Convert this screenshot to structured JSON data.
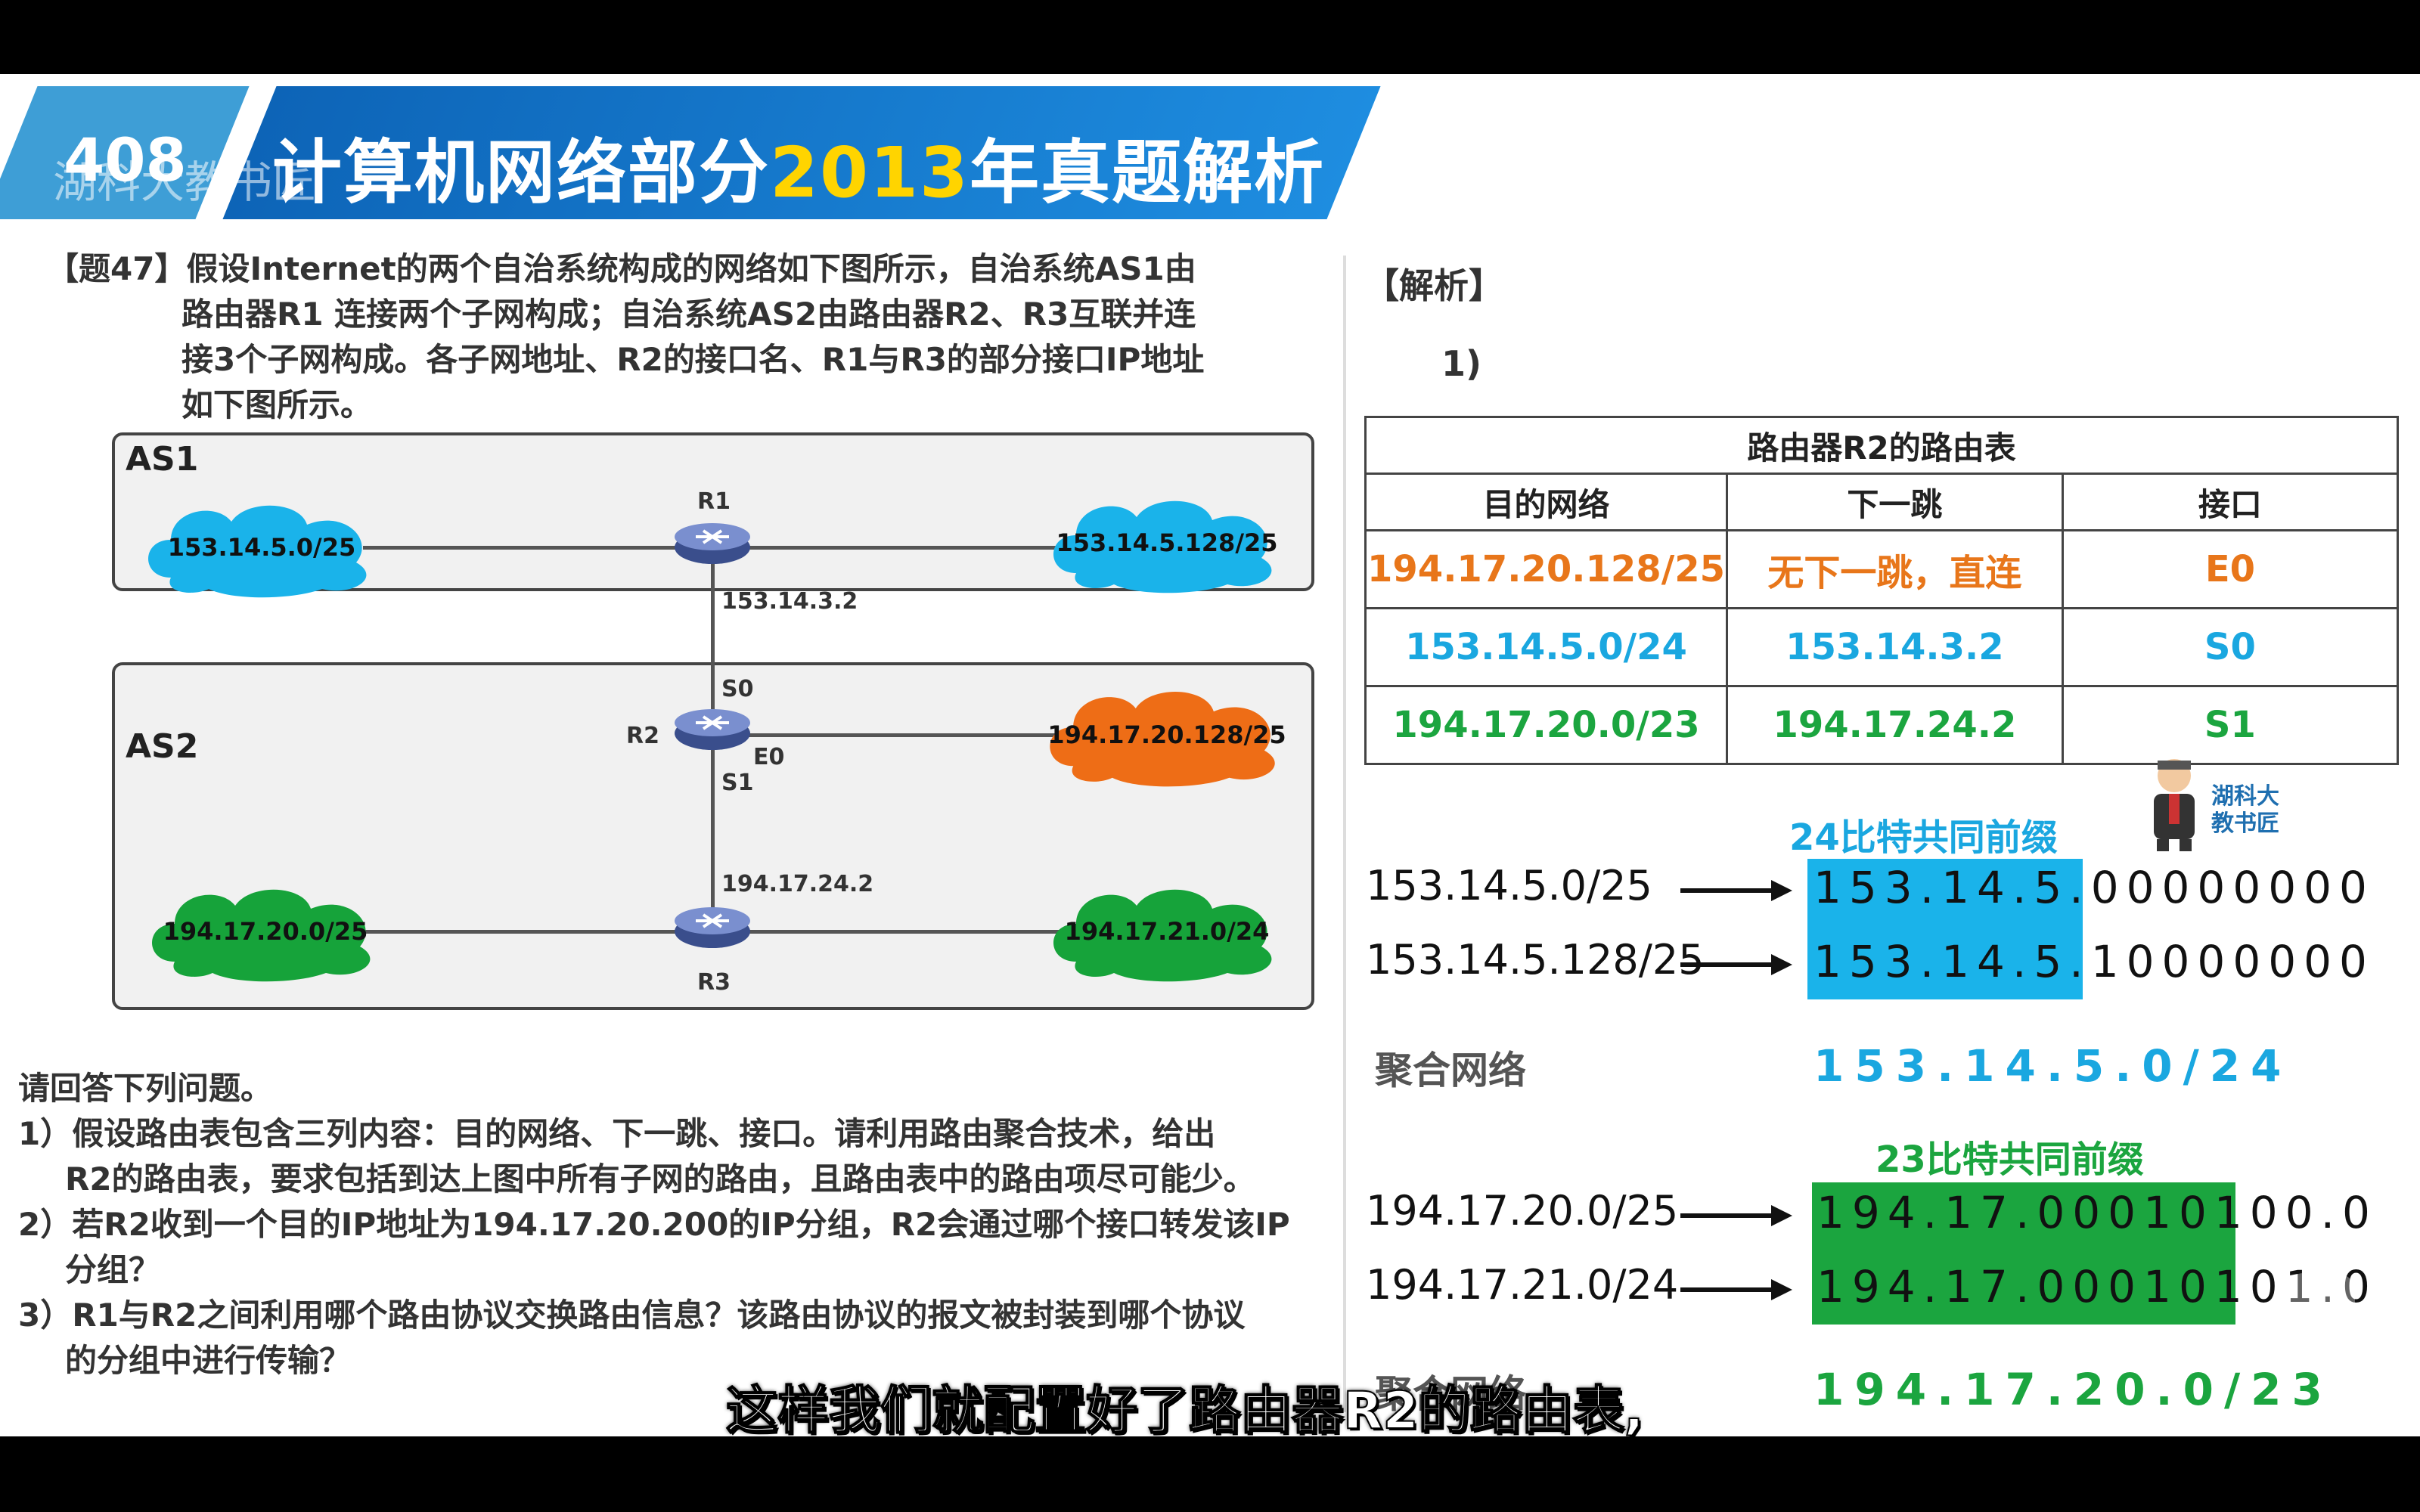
{
  "header": {
    "prefix": "408",
    "title_a": "计算机网络部分",
    "title_year": "2013",
    "title_b": "年真题解析",
    "watermark": "湖科大教书匠"
  },
  "question": {
    "lines": [
      "【题47】假设Internet的两个自治系统构成的网络如下图所示，自治系统AS1由",
      "路由器R1 连接两个子网构成；自治系统AS2由路由器R2、R3互联并连",
      "接3个子网构成。各子网地址、R2的接口名、R1与R3的部分接口IP地址",
      "如下图所示。"
    ],
    "ask_lines": [
      "请回答下列问题。",
      "1）假设路由表包含三列内容：目的网络、下一跳、接口。请利用路由聚合技术，给出",
      "R2的路由表，要求包括到达上图中所有子网的路由，且路由表中的路由项尽可能少。",
      "2）若R2收到一个目的IP地址为194.17.20.200的IP分组，R2会通过哪个接口转发该IP",
      "分组？",
      "3）R1与R2之间利用哪个路由协议交换路由信息？该路由协议的报文被封装到哪个协议",
      "的分组中进行传输？"
    ]
  },
  "diagram": {
    "as1_label": "AS1",
    "as2_label": "AS2",
    "r1": "R1",
    "r2": "R2",
    "r3": "R3",
    "r1_ip": "153.14.3.2",
    "r3_ip": "194.17.24.2",
    "s0": "S0",
    "s1": "S1",
    "e0": "E0",
    "net_a": "153.14.5.0/25",
    "net_b": "153.14.5.128/25",
    "net_c": "194.17.20.128/25",
    "net_d": "194.17.20.0/25",
    "net_e": "194.17.21.0/24",
    "colors": {
      "blue_cloud": "#1ab3ea",
      "orange_cloud": "#ee6d16",
      "green_cloud": "#16a33a"
    }
  },
  "answer": {
    "heading": "【解析】",
    "part": "1)",
    "table_title": "路由器R2的路由表",
    "cols": [
      "目的网络",
      "下一跳",
      "接口"
    ],
    "rows": [
      {
        "dest": "194.17.20.128/25",
        "hop": "无下一跳，直连",
        "iface": "E0",
        "color": "#e8761a"
      },
      {
        "dest": "153.14.5.0/24",
        "hop": "153.14.3.2",
        "iface": "S0",
        "color": "#1aa7e0"
      },
      {
        "dest": "194.17.20.0/23",
        "hop": "194.17.24.2",
        "iface": "S1",
        "color": "#1ba53f"
      }
    ],
    "prefix24_label": "24比特共同前缀",
    "addr1": "153.14.5.0/25",
    "addr2": "153.14.5.128/25",
    "bits1_prefix": "153.14.5",
    "bits1_rest": ".00000000",
    "bits2_prefix": "153.14.5",
    "bits2_rest": ".10000000",
    "agg_label": "聚合网络",
    "agg1": "153.14.5.0/24",
    "prefix23_label": "23比特共同前缀",
    "addr3": "194.17.20.0/25",
    "addr4": "194.17.21.0/24",
    "bits3_prefix": "194.17.0001010",
    "bits3_rest": "0.0",
    "bits4_prefix": "194.17.0001010",
    "bits4_rest": "1.0",
    "agg2_label": "聚合网络",
    "agg2": "194.17.20.0/23",
    "mascot_line1": "湖科大",
    "mascot_line2": "教书匠"
  },
  "subtitle": "这样我们就配置好了路由器R2的路由表,"
}
